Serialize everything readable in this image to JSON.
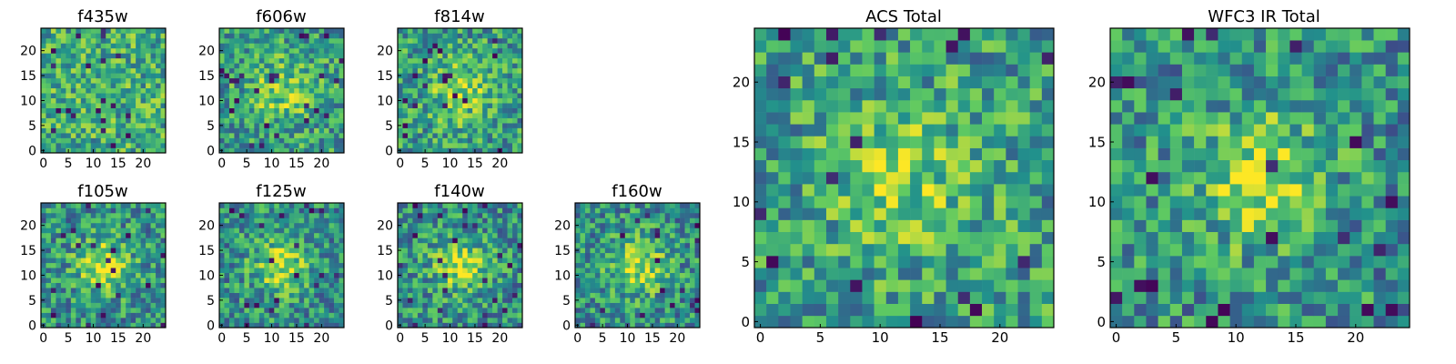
{
  "figure": {
    "description_free": true
  },
  "colormap": {
    "name": "viridis",
    "stops": [
      "#440154",
      "#3b528b",
      "#21918c",
      "#5ec962",
      "#fde725"
    ]
  },
  "chart_data": [
    {
      "type": "heatmap",
      "title": "f435w",
      "grid_size": 25,
      "pattern": "noise",
      "seed": 11,
      "xticks": [
        0,
        5,
        10,
        15,
        20
      ],
      "yticks": [
        0,
        5,
        10,
        15,
        20
      ],
      "xlim": [
        -0.5,
        24.5
      ],
      "ylim": [
        -0.5,
        24.5
      ]
    },
    {
      "type": "heatmap",
      "title": "f606w",
      "grid_size": 25,
      "pattern": "weak-source",
      "seed": 23,
      "xticks": [
        0,
        5,
        10,
        15,
        20
      ],
      "yticks": [
        0,
        5,
        10,
        15,
        20
      ],
      "xlim": [
        -0.5,
        24.5
      ],
      "ylim": [
        -0.5,
        24.5
      ]
    },
    {
      "type": "heatmap",
      "title": "f814w",
      "grid_size": 25,
      "pattern": "weak-source",
      "seed": 37,
      "xticks": [
        0,
        5,
        10,
        15,
        20
      ],
      "yticks": [
        0,
        5,
        10,
        15,
        20
      ],
      "xlim": [
        -0.5,
        24.5
      ],
      "ylim": [
        -0.5,
        24.5
      ]
    },
    {
      "type": "heatmap",
      "title": "f105w",
      "grid_size": 25,
      "pattern": "source",
      "seed": 41,
      "xticks": [
        0,
        5,
        10,
        15,
        20
      ],
      "yticks": [
        0,
        5,
        10,
        15,
        20
      ],
      "xlim": [
        -0.5,
        24.5
      ],
      "ylim": [
        -0.5,
        24.5
      ]
    },
    {
      "type": "heatmap",
      "title": "f125w",
      "grid_size": 25,
      "pattern": "source",
      "seed": 53,
      "xticks": [
        0,
        5,
        10,
        15,
        20
      ],
      "yticks": [
        0,
        5,
        10,
        15,
        20
      ],
      "xlim": [
        -0.5,
        24.5
      ],
      "ylim": [
        -0.5,
        24.5
      ]
    },
    {
      "type": "heatmap",
      "title": "f140w",
      "grid_size": 25,
      "pattern": "source",
      "seed": 67,
      "xticks": [
        0,
        5,
        10,
        15,
        20
      ],
      "yticks": [
        0,
        5,
        10,
        15,
        20
      ],
      "xlim": [
        -0.5,
        24.5
      ],
      "ylim": [
        -0.5,
        24.5
      ]
    },
    {
      "type": "heatmap",
      "title": "f160w",
      "grid_size": 25,
      "pattern": "source",
      "seed": 79,
      "xticks": [
        0,
        5,
        10,
        15,
        20
      ],
      "yticks": [
        0,
        5,
        10,
        15,
        20
      ],
      "xlim": [
        -0.5,
        24.5
      ],
      "ylim": [
        -0.5,
        24.5
      ]
    },
    {
      "type": "heatmap",
      "title": "ACS Total",
      "grid_size": 25,
      "pattern": "weak-source",
      "seed": 97,
      "xticks": [
        0,
        5,
        10,
        15,
        20
      ],
      "yticks": [
        0,
        5,
        10,
        15,
        20
      ],
      "xlim": [
        -0.5,
        24.5
      ],
      "ylim": [
        -0.5,
        24.5
      ]
    },
    {
      "type": "heatmap",
      "title": "WFC3 IR Total",
      "grid_size": 25,
      "pattern": "source",
      "seed": 113,
      "xticks": [
        0,
        5,
        10,
        15,
        20
      ],
      "yticks": [
        0,
        5,
        10,
        15,
        20
      ],
      "xlim": [
        -0.5,
        24.5
      ],
      "ylim": [
        -0.5,
        24.5
      ]
    }
  ]
}
